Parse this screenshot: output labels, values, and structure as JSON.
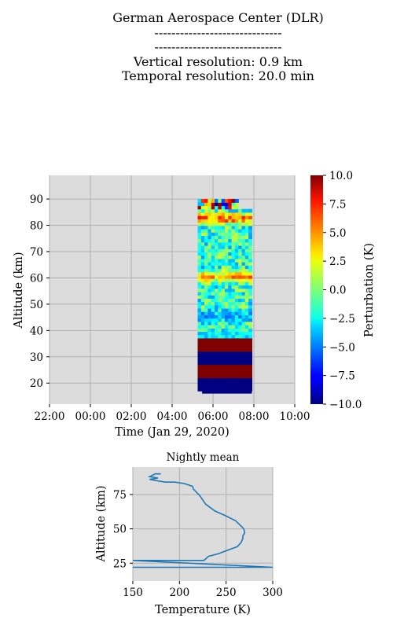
{
  "header": {
    "lines": [
      "German Aerospace Center (DLR)",
      "------------------------------",
      "------------------------------",
      "Vertical resolution: 0.9 km",
      "Temporal resolution: 20.0 min"
    ]
  },
  "chart_data": [
    {
      "type": "heatmap",
      "title": "",
      "xlabel": "Time (Jan 29, 2020)",
      "ylabel": "Altitude (km)",
      "x_ticks": [
        "22:00",
        "00:00",
        "02:00",
        "04:00",
        "06:00",
        "08:00",
        "10:00"
      ],
      "x_tick_hours": [
        -2,
        0,
        2,
        4,
        6,
        8,
        10
      ],
      "xlim_hours": [
        -2,
        10
      ],
      "y_ticks": [
        20,
        30,
        40,
        50,
        60,
        70,
        80,
        90
      ],
      "ylim": [
        12,
        99
      ],
      "grid": true,
      "data_window_hours": [
        5.25,
        7.9
      ],
      "data_top_km": [
        90,
        85
      ],
      "colorbar": {
        "label": "Perturbation (K)",
        "colormap": "jet",
        "range": [
          -10.0,
          10.0
        ],
        "ticks": [
          "10.0",
          "7.5",
          "5.0",
          "2.5",
          "0.0",
          "−2.5",
          "−5.0",
          "−7.5",
          "−10.0"
        ],
        "tick_values": [
          10,
          7.5,
          5,
          2.5,
          0,
          -2.5,
          -5,
          -7.5,
          -10
        ]
      },
      "bands": [
        {
          "from_km": 12,
          "to_km": 16,
          "value": 0
        },
        {
          "from_km": 16,
          "to_km": 21,
          "value": -10
        },
        {
          "from_km": 21,
          "to_km": 26,
          "value": 10
        },
        {
          "from_km": 26,
          "to_km": 31,
          "value": -10
        },
        {
          "from_km": 31,
          "to_km": 36,
          "value": 10
        }
      ],
      "features": [
        {
          "altitude_km": 82,
          "value": 9
        },
        {
          "altitude_km": 60,
          "value": 7
        },
        {
          "altitude_km": 45,
          "value": -6
        },
        {
          "altitude_km": 38,
          "value": -4
        }
      ]
    },
    {
      "type": "line",
      "title": "Nightly mean",
      "xlabel": "Temperature (K)",
      "ylabel": "Altitude (km)",
      "xlim": [
        150,
        300
      ],
      "ylim": [
        12,
        95
      ],
      "x_ticks": [
        150,
        200,
        250,
        300
      ],
      "y_ticks": [
        25,
        50,
        75
      ],
      "grid": true,
      "series": [
        {
          "color": "#1f77b4",
          "x": [
            150,
            300,
            300,
            150,
            226,
            228,
            231,
            242,
            254,
            262,
            266,
            268,
            268,
            270,
            269,
            266,
            260,
            248,
            238,
            228,
            222,
            215,
            214,
            205,
            195,
            185,
            176,
            168,
            177,
            168,
            174,
            180
          ],
          "y": [
            22,
            22,
            22,
            27,
            27,
            28,
            30,
            32,
            35,
            37,
            40,
            43,
            45,
            47,
            50,
            52,
            56,
            60,
            63,
            68,
            74,
            79,
            81,
            83,
            84,
            84,
            85,
            86,
            87,
            88,
            90,
            90
          ]
        }
      ]
    }
  ]
}
